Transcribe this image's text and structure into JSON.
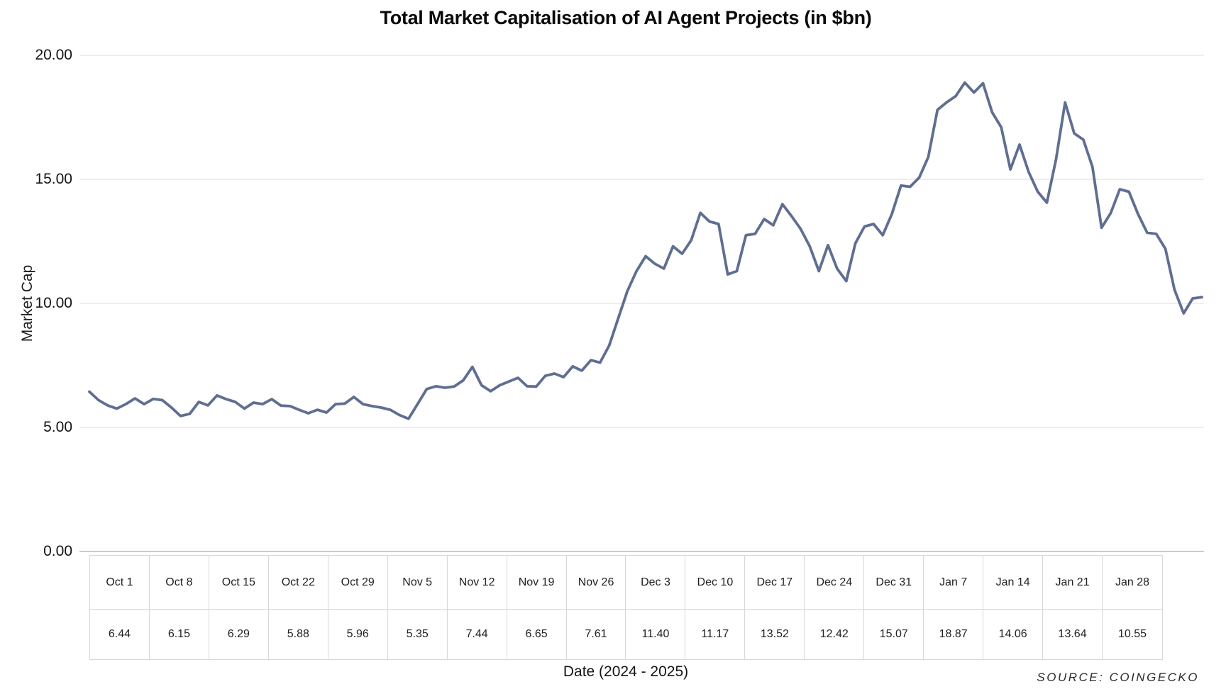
{
  "chart": {
    "title": "Total Market Capitalisation of AI Agent Projects (in $bn)",
    "y_axis_title": "Market Cap",
    "x_axis_title": "Date (2024 - 2025)",
    "source_note": "SOURCE: COINGECKO",
    "line_color": "#5f6e91",
    "grid_color": "#e9e9e9",
    "zero_line_color": "#cccccc"
  },
  "chart_data": {
    "type": "line",
    "title": "Total Market Capitalisation of AI Agent Projects (in $bn)",
    "xlabel": "Date (2024 - 2025)",
    "ylabel": "Market Cap",
    "ylim": [
      0,
      20
    ],
    "yticks": [
      {
        "label": "20.00",
        "value": 20
      },
      {
        "label": "15.00",
        "value": 15
      },
      {
        "label": "10.00",
        "value": 10
      },
      {
        "label": "5.00",
        "value": 5
      },
      {
        "label": "0.00",
        "value": 0
      }
    ],
    "grid": true,
    "legend": false,
    "categories": [
      "Oct 1",
      "Oct 8",
      "Oct 15",
      "Oct 22",
      "Oct 29",
      "Nov 5",
      "Nov 12",
      "Nov 19",
      "Nov 26",
      "Dec 3",
      "Dec 10",
      "Dec 17",
      "Dec 24",
      "Dec 31",
      "Jan 7",
      "Jan 14",
      "Jan 21",
      "Jan 28"
    ],
    "values": [
      6.44,
      6.15,
      6.29,
      5.88,
      5.96,
      5.35,
      7.44,
      6.65,
      7.61,
      11.4,
      11.17,
      13.52,
      12.42,
      15.07,
      18.87,
      14.06,
      13.64,
      10.55
    ],
    "daily_values_estimated": [
      6.44,
      6.1,
      5.89,
      5.76,
      5.94,
      6.17,
      5.94,
      6.15,
      6.1,
      5.8,
      5.46,
      5.55,
      6.03,
      5.89,
      6.29,
      6.14,
      6.03,
      5.76,
      6.0,
      5.94,
      6.14,
      5.88,
      5.86,
      5.71,
      5.57,
      5.71,
      5.6,
      5.94,
      5.96,
      6.23,
      5.94,
      5.86,
      5.8,
      5.71,
      5.5,
      5.35,
      5.95,
      6.55,
      6.66,
      6.6,
      6.65,
      6.9,
      7.44,
      6.7,
      6.46,
      6.7,
      6.85,
      7.0,
      6.66,
      6.65,
      7.08,
      7.17,
      7.03,
      7.46,
      7.29,
      7.71,
      7.61,
      8.3,
      9.4,
      10.5,
      11.3,
      11.9,
      11.6,
      11.4,
      12.3,
      12.0,
      12.55,
      13.65,
      13.3,
      13.2,
      11.17,
      11.3,
      12.75,
      12.8,
      13.4,
      13.15,
      14.0,
      13.52,
      13.0,
      12.3,
      11.3,
      12.35,
      11.4,
      10.9,
      12.42,
      13.1,
      13.2,
      12.75,
      13.6,
      14.75,
      14.7,
      15.07,
      15.9,
      17.8,
      18.1,
      18.35,
      18.9,
      18.5,
      18.87,
      17.7,
      17.1,
      15.4,
      16.4,
      15.3,
      14.5,
      14.06,
      15.8,
      18.1,
      16.85,
      16.6,
      15.5,
      13.05,
      13.64,
      14.6,
      14.5,
      13.6,
      12.85,
      12.8,
      12.2,
      10.55,
      9.6,
      10.2,
      10.25
    ]
  },
  "table": {
    "dates": [
      "Oct 1",
      "Oct 8",
      "Oct 15",
      "Oct 22",
      "Oct 29",
      "Nov 5",
      "Nov 12",
      "Nov 19",
      "Nov 26",
      "Dec 3",
      "Dec 10",
      "Dec 17",
      "Dec 24",
      "Dec 31",
      "Jan 7",
      "Jan 14",
      "Jan 21",
      "Jan 28"
    ],
    "values": [
      "6.44",
      "6.15",
      "6.29",
      "5.88",
      "5.96",
      "5.35",
      "7.44",
      "6.65",
      "7.61",
      "11.40",
      "11.17",
      "13.52",
      "12.42",
      "15.07",
      "18.87",
      "14.06",
      "13.64",
      "10.55"
    ]
  }
}
